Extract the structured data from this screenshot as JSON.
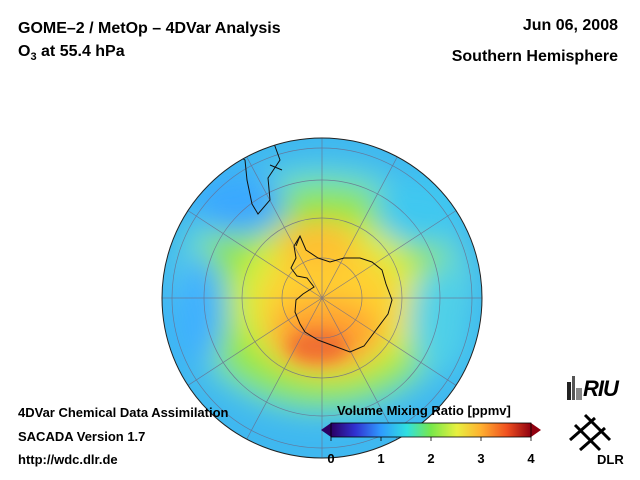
{
  "header": {
    "title": "GOME–2 / MetOp – 4DVar Analysis",
    "species": "O",
    "species_sub": "3",
    "level": " at 55.4 hPa",
    "date": "Jun 06, 2008",
    "hemisphere": "Southern Hemisphere"
  },
  "footer": {
    "line1": "4DVar Chemical Data Assimilation",
    "line2": "SACADA Version 1.7",
    "line3": "http://wdc.dlr.de"
  },
  "colorbar": {
    "label": "Volume Mixing Ratio [ppmv]",
    "ticks": [
      "0",
      "1",
      "2",
      "3",
      "4"
    ],
    "min": 0,
    "max": 4
  },
  "logos": {
    "riu": "RIU",
    "dlr": "DLR"
  },
  "colors": {
    "ocean_text": "#000000",
    "color_0": "#2a0063",
    "color_1": "#2f9bff",
    "color_2": "#78e84a",
    "color_3": "#ffd030",
    "color_4": "#c01a10"
  },
  "chart_data": {
    "type": "heatmap",
    "projection": "orthographic, south polar view",
    "variable": "O3 volume mixing ratio",
    "units": "ppmv",
    "range": [
      0,
      4
    ],
    "regions": [
      {
        "name": "background ring",
        "value": 1.3
      },
      {
        "name": "mid-latitude band",
        "value": 2.0
      },
      {
        "name": "polar vortex",
        "value": 3.1
      },
      {
        "name": "maximum over Antarctic edge",
        "value": 3.6
      }
    ]
  }
}
